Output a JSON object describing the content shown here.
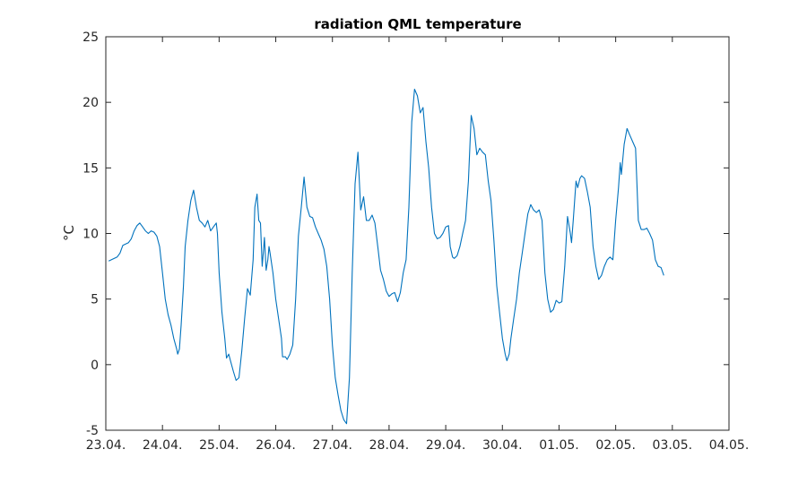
{
  "chart_data": {
    "type": "line",
    "title": "radiation QML temperature",
    "xlabel": "",
    "ylabel": "°C",
    "x_ticks": [
      "23.04.",
      "24.04.",
      "25.04.",
      "26.04.",
      "27.04.",
      "28.04.",
      "29.04.",
      "30.04.",
      "01.05.",
      "02.05.",
      "03.05.",
      "04.05."
    ],
    "xlim": [
      0,
      11
    ],
    "ylim": [
      -5,
      25
    ],
    "y_ticks": [
      -5,
      0,
      5,
      10,
      15,
      20,
      25
    ],
    "grid": false,
    "line_color": "#0072BD",
    "x_unit": "days from 23.04.",
    "series": [
      {
        "values": [
          [
            0.05,
            7.9
          ],
          [
            0.1,
            8.0
          ],
          [
            0.2,
            8.2
          ],
          [
            0.25,
            8.5
          ],
          [
            0.3,
            9.1
          ],
          [
            0.35,
            9.2
          ],
          [
            0.4,
            9.3
          ],
          [
            0.45,
            9.6
          ],
          [
            0.5,
            10.2
          ],
          [
            0.55,
            10.6
          ],
          [
            0.6,
            10.8
          ],
          [
            0.65,
            10.5
          ],
          [
            0.7,
            10.2
          ],
          [
            0.75,
            10.0
          ],
          [
            0.8,
            10.2
          ],
          [
            0.85,
            10.1
          ],
          [
            0.9,
            9.8
          ],
          [
            0.95,
            9.0
          ],
          [
            1.0,
            7.0
          ],
          [
            1.05,
            5.0
          ],
          [
            1.1,
            3.8
          ],
          [
            1.15,
            3.0
          ],
          [
            1.2,
            2.0
          ],
          [
            1.25,
            1.2
          ],
          [
            1.27,
            0.8
          ],
          [
            1.3,
            1.2
          ],
          [
            1.33,
            3.0
          ],
          [
            1.37,
            6.0
          ],
          [
            1.4,
            9.0
          ],
          [
            1.45,
            11.0
          ],
          [
            1.5,
            12.5
          ],
          [
            1.55,
            13.3
          ],
          [
            1.6,
            12.0
          ],
          [
            1.65,
            11.0
          ],
          [
            1.7,
            10.8
          ],
          [
            1.75,
            10.5
          ],
          [
            1.8,
            11.0
          ],
          [
            1.85,
            10.2
          ],
          [
            1.9,
            10.5
          ],
          [
            1.95,
            10.8
          ],
          [
            1.97,
            10.0
          ],
          [
            2.0,
            7.0
          ],
          [
            2.05,
            4.0
          ],
          [
            2.1,
            2.0
          ],
          [
            2.13,
            0.5
          ],
          [
            2.17,
            0.8
          ],
          [
            2.2,
            0.3
          ],
          [
            2.25,
            -0.5
          ],
          [
            2.3,
            -1.2
          ],
          [
            2.35,
            -1.0
          ],
          [
            2.4,
            1.0
          ],
          [
            2.45,
            3.5
          ],
          [
            2.5,
            5.8
          ],
          [
            2.55,
            5.3
          ],
          [
            2.6,
            8.0
          ],
          [
            2.63,
            12.0
          ],
          [
            2.67,
            13.0
          ],
          [
            2.7,
            11.0
          ],
          [
            2.73,
            10.8
          ],
          [
            2.76,
            7.5
          ],
          [
            2.78,
            8.5
          ],
          [
            2.8,
            9.7
          ],
          [
            2.83,
            7.2
          ],
          [
            2.86,
            8.0
          ],
          [
            2.88,
            9.0
          ],
          [
            2.9,
            8.5
          ],
          [
            2.95,
            7.0
          ],
          [
            3.0,
            5.0
          ],
          [
            3.05,
            3.5
          ],
          [
            3.1,
            2.0
          ],
          [
            3.12,
            0.6
          ],
          [
            3.17,
            0.6
          ],
          [
            3.2,
            0.4
          ],
          [
            3.25,
            0.8
          ],
          [
            3.3,
            1.5
          ],
          [
            3.35,
            5.0
          ],
          [
            3.4,
            9.8
          ],
          [
            3.45,
            12.0
          ],
          [
            3.5,
            14.3
          ],
          [
            3.55,
            12.0
          ],
          [
            3.6,
            11.3
          ],
          [
            3.65,
            11.2
          ],
          [
            3.7,
            10.5
          ],
          [
            3.75,
            10.0
          ],
          [
            3.8,
            9.5
          ],
          [
            3.85,
            8.8
          ],
          [
            3.9,
            7.5
          ],
          [
            3.95,
            5.0
          ],
          [
            4.0,
            1.5
          ],
          [
            4.05,
            -1.0
          ],
          [
            4.1,
            -2.3
          ],
          [
            4.15,
            -3.5
          ],
          [
            4.2,
            -4.2
          ],
          [
            4.25,
            -4.5
          ],
          [
            4.3,
            -1.0
          ],
          [
            4.35,
            7.0
          ],
          [
            4.4,
            13.8
          ],
          [
            4.45,
            16.2
          ],
          [
            4.5,
            11.8
          ],
          [
            4.55,
            12.8
          ],
          [
            4.6,
            11.0
          ],
          [
            4.65,
            11.0
          ],
          [
            4.7,
            11.4
          ],
          [
            4.75,
            10.8
          ],
          [
            4.8,
            9.0
          ],
          [
            4.85,
            7.2
          ],
          [
            4.9,
            6.5
          ],
          [
            4.95,
            5.6
          ],
          [
            5.0,
            5.2
          ],
          [
            5.05,
            5.4
          ],
          [
            5.1,
            5.5
          ],
          [
            5.15,
            4.8
          ],
          [
            5.2,
            5.5
          ],
          [
            5.25,
            7.0
          ],
          [
            5.3,
            8.0
          ],
          [
            5.35,
            12.0
          ],
          [
            5.4,
            18.5
          ],
          [
            5.45,
            21.0
          ],
          [
            5.5,
            20.5
          ],
          [
            5.55,
            19.2
          ],
          [
            5.6,
            19.6
          ],
          [
            5.65,
            17.0
          ],
          [
            5.7,
            15.0
          ],
          [
            5.75,
            12.0
          ],
          [
            5.8,
            10.0
          ],
          [
            5.85,
            9.6
          ],
          [
            5.9,
            9.7
          ],
          [
            5.95,
            10.0
          ],
          [
            6.0,
            10.5
          ],
          [
            6.05,
            10.6
          ],
          [
            6.08,
            9.0
          ],
          [
            6.12,
            8.2
          ],
          [
            6.15,
            8.1
          ],
          [
            6.2,
            8.3
          ],
          [
            6.25,
            9.0
          ],
          [
            6.3,
            10.0
          ],
          [
            6.35,
            11.0
          ],
          [
            6.4,
            14.0
          ],
          [
            6.45,
            19.0
          ],
          [
            6.5,
            18.0
          ],
          [
            6.55,
            16.0
          ],
          [
            6.6,
            16.5
          ],
          [
            6.65,
            16.2
          ],
          [
            6.7,
            16.0
          ],
          [
            6.75,
            14.0
          ],
          [
            6.8,
            12.5
          ],
          [
            6.85,
            9.5
          ],
          [
            6.9,
            6.0
          ],
          [
            6.95,
            4.0
          ],
          [
            7.0,
            2.0
          ],
          [
            7.05,
            0.8
          ],
          [
            7.08,
            0.3
          ],
          [
            7.12,
            0.8
          ],
          [
            7.15,
            2.0
          ],
          [
            7.2,
            3.5
          ],
          [
            7.25,
            5.0
          ],
          [
            7.3,
            7.0
          ],
          [
            7.35,
            8.5
          ],
          [
            7.4,
            10.0
          ],
          [
            7.45,
            11.5
          ],
          [
            7.5,
            12.2
          ],
          [
            7.55,
            11.8
          ],
          [
            7.6,
            11.6
          ],
          [
            7.65,
            11.8
          ],
          [
            7.7,
            11.0
          ],
          [
            7.75,
            7.0
          ],
          [
            7.8,
            5.0
          ],
          [
            7.85,
            4.0
          ],
          [
            7.9,
            4.2
          ],
          [
            7.95,
            4.9
          ],
          [
            8.0,
            4.7
          ],
          [
            8.05,
            4.8
          ],
          [
            8.1,
            7.5
          ],
          [
            8.15,
            11.3
          ],
          [
            8.2,
            10.0
          ],
          [
            8.22,
            9.3
          ],
          [
            8.25,
            11.0
          ],
          [
            8.3,
            14.0
          ],
          [
            8.33,
            13.5
          ],
          [
            8.37,
            14.2
          ],
          [
            8.4,
            14.4
          ],
          [
            8.45,
            14.2
          ],
          [
            8.5,
            13.2
          ],
          [
            8.55,
            12.0
          ],
          [
            8.6,
            9.0
          ],
          [
            8.65,
            7.5
          ],
          [
            8.7,
            6.5
          ],
          [
            8.75,
            6.8
          ],
          [
            8.8,
            7.5
          ],
          [
            8.85,
            8.0
          ],
          [
            8.9,
            8.2
          ],
          [
            8.95,
            8.0
          ],
          [
            9.0,
            11.0
          ],
          [
            9.05,
            13.5
          ],
          [
            9.08,
            15.4
          ],
          [
            9.1,
            14.5
          ],
          [
            9.15,
            16.8
          ],
          [
            9.2,
            18.0
          ],
          [
            9.25,
            17.5
          ],
          [
            9.3,
            17.0
          ],
          [
            9.35,
            16.5
          ],
          [
            9.4,
            11.0
          ],
          [
            9.45,
            10.3
          ],
          [
            9.5,
            10.3
          ],
          [
            9.55,
            10.4
          ],
          [
            9.6,
            10.0
          ],
          [
            9.65,
            9.5
          ],
          [
            9.7,
            8.0
          ],
          [
            9.75,
            7.5
          ],
          [
            9.8,
            7.4
          ],
          [
            9.85,
            6.8
          ]
        ]
      }
    ]
  }
}
